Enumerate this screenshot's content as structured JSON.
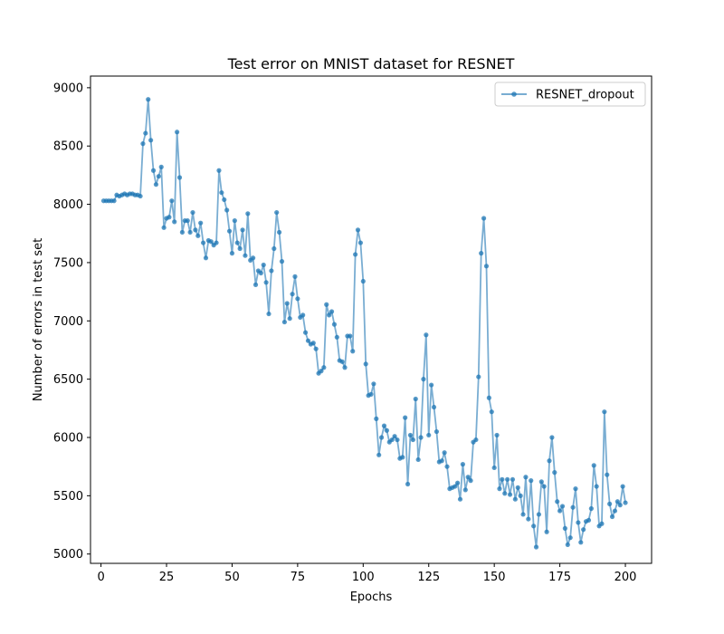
{
  "chart_data": {
    "type": "line",
    "title": "Test error on MNIST dataset for RESNET",
    "xlabel": "Epochs",
    "ylabel": "Number of errors in test set",
    "xlim": [
      -4,
      210
    ],
    "ylim": [
      4920,
      9100
    ],
    "xticks": [
      0,
      25,
      50,
      75,
      100,
      125,
      150,
      175,
      200
    ],
    "yticks": [
      5000,
      5500,
      6000,
      6500,
      7000,
      7500,
      8000,
      8500,
      9000
    ],
    "grid": false,
    "legend_position": "top-right",
    "series": [
      {
        "name": "RESNET_dropout",
        "color": "#1f77b4",
        "marker": "circle",
        "x": [
          1,
          2,
          3,
          4,
          5,
          6,
          7,
          8,
          9,
          10,
          11,
          12,
          13,
          14,
          15,
          16,
          17,
          18,
          19,
          20,
          21,
          22,
          23,
          24,
          25,
          26,
          27,
          28,
          29,
          30,
          31,
          32,
          33,
          34,
          35,
          36,
          37,
          38,
          39,
          40,
          41,
          42,
          43,
          44,
          45,
          46,
          47,
          48,
          49,
          50,
          51,
          52,
          53,
          54,
          55,
          56,
          57,
          58,
          59,
          60,
          61,
          62,
          63,
          64,
          65,
          66,
          67,
          68,
          69,
          70,
          71,
          72,
          73,
          74,
          75,
          76,
          77,
          78,
          79,
          80,
          81,
          82,
          83,
          84,
          85,
          86,
          87,
          88,
          89,
          90,
          91,
          92,
          93,
          94,
          95,
          96,
          97,
          98,
          99,
          100,
          101,
          102,
          103,
          104,
          105,
          106,
          107,
          108,
          109,
          110,
          111,
          112,
          113,
          114,
          115,
          116,
          117,
          118,
          119,
          120,
          121,
          122,
          123,
          124,
          125,
          126,
          127,
          128,
          129,
          130,
          131,
          132,
          133,
          134,
          135,
          136,
          137,
          138,
          139,
          140,
          141,
          142,
          143,
          144,
          145,
          146,
          147,
          148,
          149,
          150,
          151,
          152,
          153,
          154,
          155,
          156,
          157,
          158,
          159,
          160,
          161,
          162,
          163,
          164,
          165,
          166,
          167,
          168,
          169,
          170,
          171,
          172,
          173,
          174,
          175,
          176,
          177,
          178,
          179,
          180,
          181,
          182,
          183,
          184,
          185,
          186,
          187,
          188,
          189,
          190,
          191,
          192,
          193,
          194,
          195,
          196,
          197,
          198,
          199,
          200
        ],
        "y": [
          8030,
          8030,
          8030,
          8030,
          8030,
          8080,
          8070,
          8080,
          8090,
          8080,
          8090,
          8090,
          8080,
          8080,
          8070,
          8520,
          8610,
          8900,
          8550,
          8290,
          8170,
          8240,
          8320,
          7800,
          7880,
          7890,
          8030,
          7850,
          8620,
          8230,
          7760,
          7860,
          7860,
          7760,
          7930,
          7780,
          7730,
          7840,
          7670,
          7540,
          7690,
          7680,
          7650,
          7670,
          8290,
          8100,
          8040,
          7950,
          7770,
          7580,
          7860,
          7670,
          7620,
          7780,
          7560,
          7920,
          7520,
          7540,
          7310,
          7430,
          7410,
          7480,
          7330,
          7060,
          7430,
          7620,
          7930,
          7760,
          7510,
          6990,
          7150,
          7020,
          7230,
          7380,
          7190,
          7030,
          7050,
          6900,
          6830,
          6800,
          6810,
          6760,
          6550,
          6570,
          6600,
          7140,
          7050,
          7080,
          6970,
          6860,
          6660,
          6650,
          6600,
          6870,
          6870,
          6740,
          7570,
          7780,
          7670,
          7340,
          6630,
          6360,
          6370,
          6460,
          6160,
          5850,
          6000,
          6100,
          6060,
          5960,
          5980,
          6010,
          5980,
          5820,
          5830,
          6170,
          5600,
          6020,
          5980,
          6330,
          5810,
          6000,
          6500,
          6880,
          6020,
          6450,
          6260,
          6050,
          5790,
          5800,
          5870,
          5750,
          5560,
          5570,
          5580,
          5610,
          5470,
          5770,
          5550,
          5660,
          5630,
          5960,
          5980,
          6520,
          7580,
          7880,
          7470,
          6340,
          6220,
          5740,
          6020,
          5560,
          5640,
          5520,
          5640,
          5510,
          5640,
          5470,
          5570,
          5500,
          5340,
          5660,
          5300,
          5630,
          5240,
          5060,
          5340,
          5620,
          5580,
          5190,
          5800,
          6000,
          5700,
          5450,
          5370,
          5410,
          5220,
          5080,
          5140,
          5400,
          5560,
          5270,
          5100,
          5210,
          5280,
          5290,
          5390,
          5760,
          5580,
          5240,
          5260,
          6220,
          5680,
          5430,
          5320,
          5370,
          5450,
          5420,
          5580,
          5440
        ]
      }
    ]
  }
}
